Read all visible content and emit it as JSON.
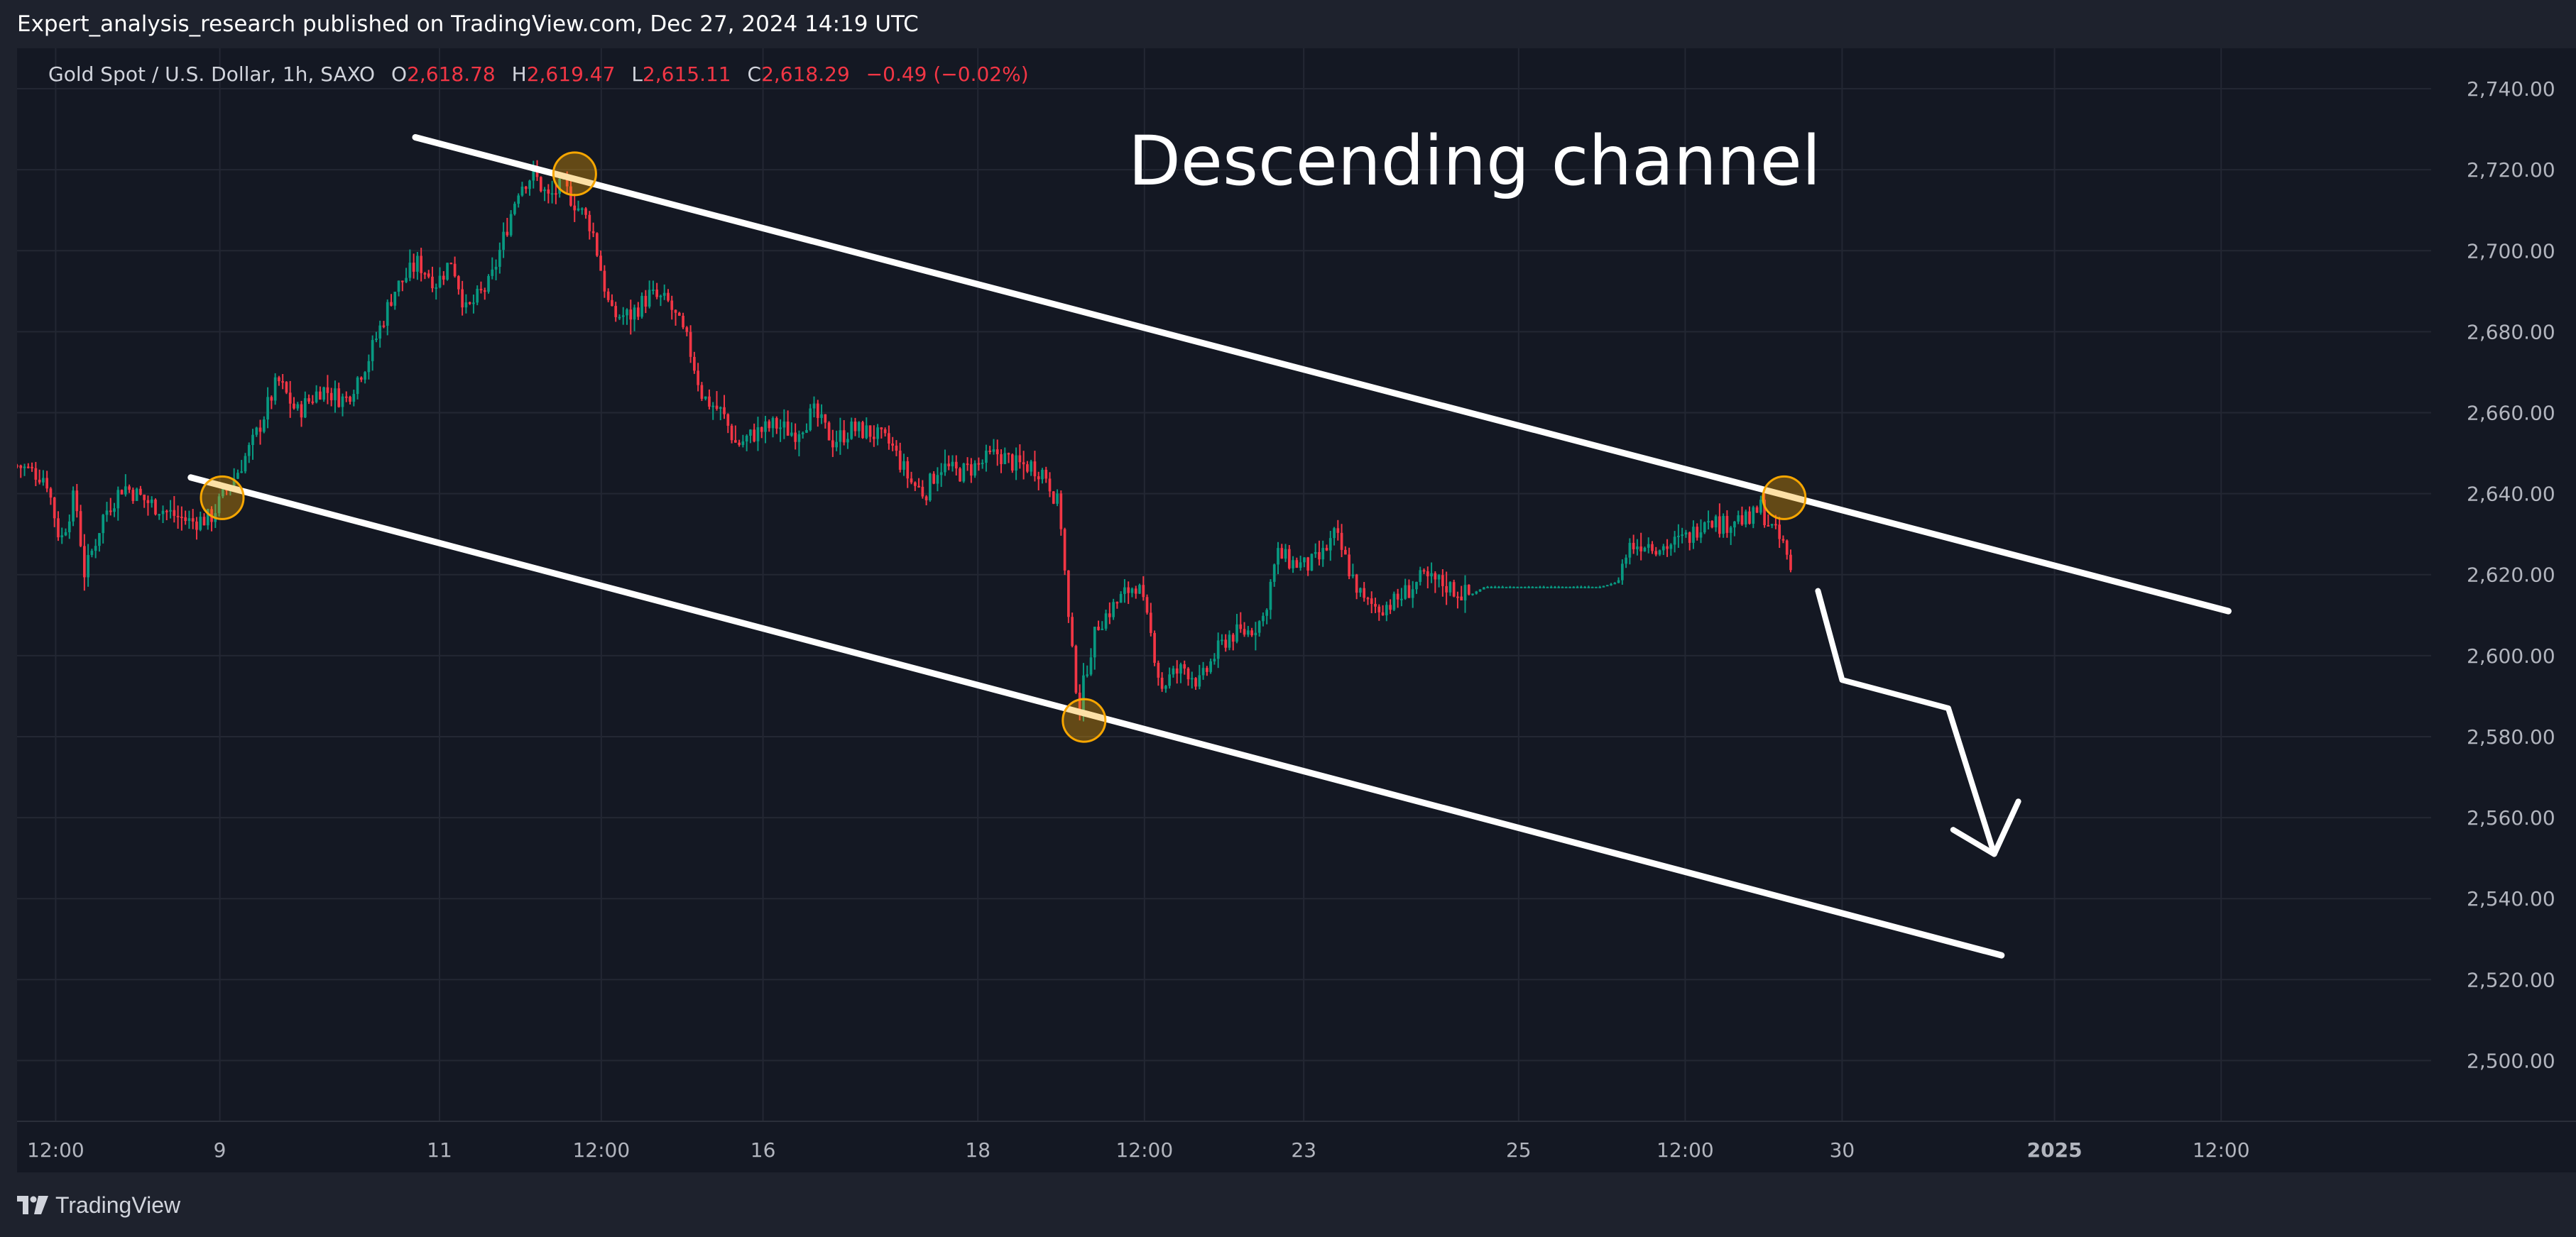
{
  "header": {
    "publisher_text": "Expert_analysis_research published on TradingView.com, Dec 27, 2024 14:19 UTC"
  },
  "legend": {
    "symbol": "Gold Spot / U.S. Dollar, 1h, SAXO",
    "open_key": "O",
    "open": "2,618.78",
    "high_key": "H",
    "high": "2,619.47",
    "low_key": "L",
    "low": "2,615.11",
    "close_key": "C",
    "close": "2,618.29",
    "change": "−0.49 (−0.02%)"
  },
  "footer": {
    "logo_text": "TradingView"
  },
  "colors": {
    "up": "#089981",
    "down": "#f23645",
    "marker": "#f7a600",
    "annotation": "#ffffff",
    "grid": "#232733"
  },
  "chart_data": {
    "type": "candlestick",
    "title": "Descending channel",
    "ylim": [
      2485,
      2750
    ],
    "y_ticks": [
      2740,
      2720,
      2700,
      2680,
      2660,
      2640,
      2620,
      2600,
      2580,
      2560,
      2540,
      2520,
      2500
    ],
    "y_tick_labels": [
      "2,740.00",
      "2,720.00",
      "2,700.00",
      "2,680.00",
      "2,660.00",
      "2,640.00",
      "2,620.00",
      "2,600.00",
      "2,580.00",
      "2,560.00",
      "2,540.00",
      "2,520.00",
      "2,500.00"
    ],
    "x_range": [
      0,
      1000
    ],
    "x_ticks": [
      {
        "x": 16,
        "label": "12:00"
      },
      {
        "x": 84,
        "label": "9"
      },
      {
        "x": 175,
        "label": "11"
      },
      {
        "x": 242,
        "label": "12:00"
      },
      {
        "x": 309,
        "label": "16"
      },
      {
        "x": 398,
        "label": "18"
      },
      {
        "x": 467,
        "label": "12:00"
      },
      {
        "x": 533,
        "label": "23"
      },
      {
        "x": 622,
        "label": "25"
      },
      {
        "x": 691,
        "label": "12:00"
      },
      {
        "x": 756,
        "label": "30"
      },
      {
        "x": 844,
        "label": "2025"
      },
      {
        "x": 913,
        "label": "12:00"
      }
    ],
    "price_path": [
      [
        0,
        2647
      ],
      [
        12,
        2644
      ],
      [
        18,
        2628
      ],
      [
        24,
        2640
      ],
      [
        28,
        2620
      ],
      [
        36,
        2635
      ],
      [
        44,
        2642
      ],
      [
        54,
        2638
      ],
      [
        64,
        2635
      ],
      [
        72,
        2633
      ],
      [
        80,
        2634
      ],
      [
        90,
        2644
      ],
      [
        98,
        2653
      ],
      [
        108,
        2668
      ],
      [
        116,
        2660
      ],
      [
        126,
        2666
      ],
      [
        136,
        2663
      ],
      [
        146,
        2674
      ],
      [
        156,
        2690
      ],
      [
        166,
        2697
      ],
      [
        174,
        2692
      ],
      [
        180,
        2698
      ],
      [
        186,
        2685
      ],
      [
        196,
        2692
      ],
      [
        202,
        2704
      ],
      [
        208,
        2716
      ],
      [
        214,
        2719
      ],
      [
        220,
        2713
      ],
      [
        226,
        2716
      ],
      [
        232,
        2711
      ],
      [
        238,
        2706
      ],
      [
        242,
        2695
      ],
      [
        246,
        2684
      ],
      [
        254,
        2684
      ],
      [
        262,
        2689
      ],
      [
        270,
        2687
      ],
      [
        278,
        2677
      ],
      [
        284,
        2664
      ],
      [
        292,
        2660
      ],
      [
        298,
        2652
      ],
      [
        306,
        2655
      ],
      [
        314,
        2657
      ],
      [
        322,
        2655
      ],
      [
        330,
        2660
      ],
      [
        338,
        2653
      ],
      [
        346,
        2656
      ],
      [
        354,
        2655
      ],
      [
        362,
        2652
      ],
      [
        370,
        2643
      ],
      [
        376,
        2640
      ],
      [
        382,
        2647
      ],
      [
        390,
        2645
      ],
      [
        398,
        2647
      ],
      [
        406,
        2650
      ],
      [
        414,
        2647
      ],
      [
        420,
        2647
      ],
      [
        426,
        2645
      ],
      [
        432,
        2636
      ],
      [
        436,
        2605
      ],
      [
        440,
        2587
      ],
      [
        444,
        2600
      ],
      [
        448,
        2608
      ],
      [
        454,
        2612
      ],
      [
        460,
        2616
      ],
      [
        464,
        2618
      ],
      [
        470,
        2604
      ],
      [
        474,
        2592
      ],
      [
        478,
        2595
      ],
      [
        484,
        2597
      ],
      [
        490,
        2593
      ],
      [
        496,
        2600
      ],
      [
        502,
        2605
      ],
      [
        510,
        2606
      ],
      [
        516,
        2609
      ],
      [
        522,
        2625
      ],
      [
        528,
        2623
      ],
      [
        534,
        2622
      ],
      [
        540,
        2624
      ],
      [
        546,
        2630
      ],
      [
        552,
        2621
      ],
      [
        558,
        2613
      ],
      [
        564,
        2612
      ],
      [
        570,
        2613
      ],
      [
        576,
        2616
      ],
      [
        582,
        2619
      ],
      [
        590,
        2618
      ],
      [
        596,
        2616
      ],
      [
        602,
        2615
      ],
      [
        608,
        2617
      ],
      [
        616,
        2617
      ],
      [
        624,
        2617
      ],
      [
        632,
        2617
      ],
      [
        640,
        2617
      ],
      [
        648,
        2617
      ],
      [
        656,
        2617
      ],
      [
        662,
        2618
      ],
      [
        668,
        2627
      ],
      [
        674,
        2628
      ],
      [
        682,
        2627
      ],
      [
        688,
        2628
      ],
      [
        694,
        2630
      ],
      [
        700,
        2635
      ],
      [
        706,
        2632
      ],
      [
        712,
        2634
      ],
      [
        718,
        2633
      ],
      [
        722,
        2637
      ],
      [
        726,
        2632
      ],
      [
        732,
        2627
      ],
      [
        736,
        2618
      ]
    ],
    "annotations": {
      "channel_upper": [
        [
          165,
          2728
        ],
        [
          916,
          2611
        ]
      ],
      "channel_lower": [
        [
          72,
          2644
        ],
        [
          822,
          2526
        ]
      ],
      "touch_points": [
        [
          85,
          2639
        ],
        [
          231,
          2719
        ],
        [
          442,
          2584
        ],
        [
          732,
          2639
        ]
      ],
      "projection_path": [
        [
          746,
          2616
        ],
        [
          756,
          2594
        ],
        [
          800,
          2587
        ],
        [
          819,
          2551
        ]
      ],
      "arrow_head": [
        [
          802,
          2557
        ],
        [
          819,
          2551
        ],
        [
          829,
          2564
        ]
      ]
    }
  }
}
